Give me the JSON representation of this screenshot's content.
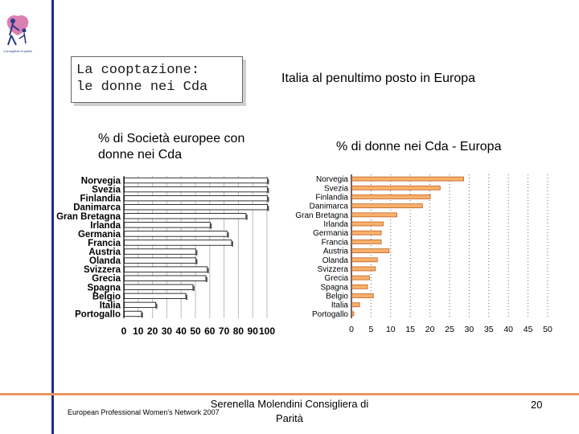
{
  "slide": {
    "title_line1": "La cooptazione:",
    "title_line2": "le donne nei Cda",
    "headline": "Italia al penultimo posto in Europa",
    "left_caption": "% di Società europee con donne nei Cda",
    "right_caption": "% di donne nei Cda - Europa",
    "footer_left": "European Professional Women's Network 2007",
    "footer_center": "Serenella Molendini Consigliera di Parità",
    "page_number": "20",
    "logo_caption": "Consigliera di parità"
  },
  "colors": {
    "accent_blue": "#1f2d8a",
    "accent_orange": "#e8965e",
    "bar_fill": "#f7b06a",
    "bar_stroke": "#c0612a"
  },
  "chart_data": [
    {
      "type": "bar",
      "orientation": "horizontal",
      "title": "% di Società europee con donne nei Cda",
      "categories": [
        "Norvegia",
        "Svezia",
        "Finlandia",
        "Danimarca",
        "Gran Bretagna",
        "Irlanda",
        "Germania",
        "Francia",
        "Austria",
        "Olanda",
        "Svizzera",
        "Grecia",
        "Spagna",
        "Belgio",
        "Italia",
        "Portogallo"
      ],
      "values": [
        100,
        100,
        100,
        100,
        85,
        60,
        72,
        75,
        50,
        50,
        58,
        57,
        48,
        43,
        22,
        12
      ],
      "ticks": [
        "0",
        "10",
        "20",
        "30",
        "40",
        "50",
        "60",
        "70",
        "80",
        "90",
        "100"
      ],
      "xlim": [
        0,
        100
      ]
    },
    {
      "type": "bar",
      "orientation": "horizontal",
      "title": "% di donne nei Cda - Europa",
      "categories": [
        "Norvegia",
        "Svezia",
        "Finlandia",
        "Danimarca",
        "Gran Bretagna",
        "Irlanda",
        "Germania",
        "Francia",
        "Austria",
        "Olanda",
        "Svizzera",
        "Grecia",
        "Spagna",
        "Belgio",
        "Italia",
        "Portogallo"
      ],
      "values": [
        28.5,
        22.5,
        20,
        18,
        11.5,
        8,
        7.5,
        7.5,
        9.5,
        6.5,
        6,
        4.5,
        4,
        5.5,
        2,
        0.5
      ],
      "ticks": [
        "0",
        "5",
        "10",
        "15",
        "20",
        "25",
        "30",
        "35",
        "40",
        "45",
        "50"
      ],
      "xlim": [
        0,
        50
      ]
    }
  ]
}
